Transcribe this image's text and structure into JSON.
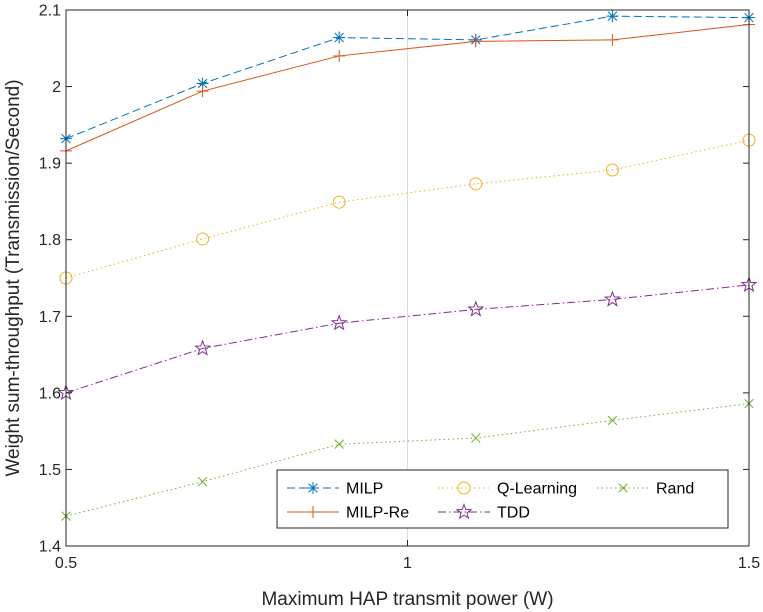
{
  "chart_data": {
    "type": "line",
    "title": "",
    "xlabel": "Maximum HAP transmit power (W)",
    "ylabel": "Weight sum-throughput (Transmission/Second)",
    "xlim": [
      0.5,
      1.5
    ],
    "ylim": [
      1.4,
      2.1
    ],
    "x_ticks": [
      0.5,
      1,
      1.5
    ],
    "x_tick_labels": [
      "0.5",
      "1",
      "1.5"
    ],
    "y_ticks": [
      1.4,
      1.5,
      1.6,
      1.7,
      1.8,
      1.9,
      2.0,
      2.1
    ],
    "y_tick_labels": [
      "1.4",
      "1.5",
      "1.6",
      "1.7",
      "1.8",
      "1.9",
      "2",
      "2.1"
    ],
    "grid": "x only at 1",
    "legend_position": "bottom-right",
    "x": [
      0.5,
      0.7,
      0.9,
      1.1,
      1.3,
      1.5
    ],
    "series": [
      {
        "name": "MILP",
        "color": "#0072BD",
        "marker": "asterisk",
        "dash": "dashed",
        "values": [
          1.932,
          2.004,
          2.064,
          2.061,
          2.092,
          2.09
        ]
      },
      {
        "name": "MILP-Re",
        "color": "#D95319",
        "marker": "plus",
        "dash": "solid",
        "values": [
          1.916,
          1.994,
          2.04,
          2.059,
          2.061,
          2.081
        ]
      },
      {
        "name": "Q-Learning",
        "color": "#EDB120",
        "marker": "circle",
        "dash": "dotted",
        "values": [
          1.75,
          1.801,
          1.849,
          1.873,
          1.891,
          1.93
        ]
      },
      {
        "name": "TDD",
        "color": "#7E2F8E",
        "marker": "pentagram",
        "dash": "dashdot",
        "values": [
          1.6,
          1.658,
          1.691,
          1.709,
          1.722,
          1.741
        ]
      },
      {
        "name": "Rand",
        "color": "#77AC30",
        "marker": "x",
        "dash": "dotted",
        "values": [
          1.439,
          1.484,
          1.533,
          1.541,
          1.564,
          1.586
        ]
      }
    ]
  }
}
